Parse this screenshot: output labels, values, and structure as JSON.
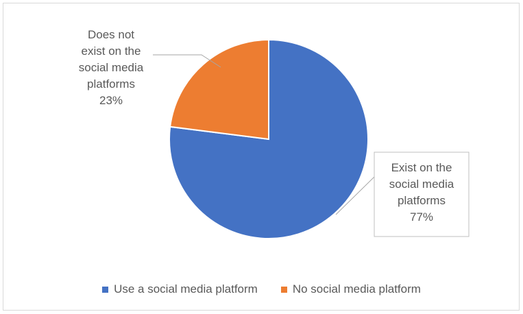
{
  "chart_data": {
    "type": "pie",
    "categories": [
      "Use a social media platform",
      "No social media platform"
    ],
    "values": [
      77,
      23
    ],
    "colors": [
      "#4472c4",
      "#ed7d31"
    ],
    "data_labels": [
      {
        "lines": [
          "Exist on the",
          "social media",
          "platforms"
        ],
        "value": "77%"
      },
      {
        "lines": [
          "Does not",
          "exist on the",
          "social media",
          "platforms"
        ],
        "value": "23%"
      }
    ],
    "legend_position": "bottom",
    "title": ""
  }
}
